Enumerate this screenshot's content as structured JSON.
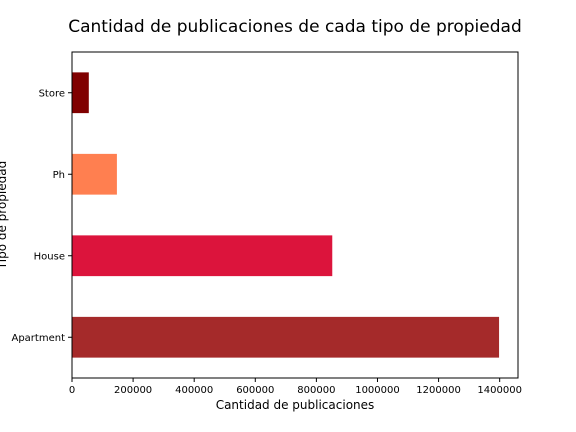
{
  "chart_data": {
    "type": "bar",
    "orientation": "horizontal",
    "title": "Cantidad de publicaciones de cada tipo de propiedad",
    "xlabel": "Cantidad de publicaciones",
    "ylabel": "Tipo de propiedad",
    "categories": [
      "Apartment",
      "House",
      "Ph",
      "Store"
    ],
    "values": [
      1398000,
      852000,
      147000,
      55000
    ],
    "colors": [
      "#a52a2a",
      "#dc143c",
      "#ff7f50",
      "#800000"
    ],
    "xlim": [
      0,
      1460000
    ],
    "xticks": [
      0,
      200000,
      400000,
      600000,
      800000,
      1000000,
      1200000,
      1400000
    ],
    "xtick_labels": [
      "0",
      "200000",
      "400000",
      "600000",
      "800000",
      "1000000",
      "1200000",
      "1400000"
    ],
    "grid": false,
    "legend": false
  }
}
